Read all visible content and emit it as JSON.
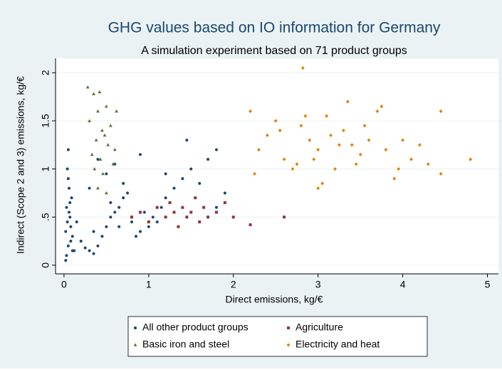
{
  "chart_data": {
    "type": "scatter",
    "title": "GHG values based on IO information for Germany",
    "subtitle": "A simulation experiment based on 71 product groups",
    "x_label": "Direct emissions, kg/€",
    "y_label": "Indirect (Scope 2 and 3) emissions, kg/€",
    "xlim": [
      -0.1,
      5.13
    ],
    "ylim": [
      -0.09,
      2.15
    ],
    "xticks": [
      0,
      1,
      2,
      3,
      4,
      5
    ],
    "yticks": [
      0,
      {
        "value": 0.5,
        "label": ".5"
      },
      1,
      1.5,
      2
    ],
    "grid": true,
    "series": [
      {
        "name": "All other product groups",
        "color": "#1a476f",
        "marker": "circle",
        "x": [
          0.02,
          0.05,
          0.08,
          0.03,
          0.06,
          0.1,
          0.04,
          0.07,
          0.12,
          0.09,
          0.02,
          0.05,
          0.15,
          0.2,
          0.25,
          0.3,
          0.35,
          0.4,
          0.45,
          0.5,
          0.55,
          0.6,
          0.65,
          0.7,
          0.75,
          0.8,
          0.85,
          0.9,
          0.95,
          1.0,
          1.05,
          1.1,
          1.15,
          1.2,
          1.3,
          1.4,
          1.5,
          1.6,
          1.7,
          1.8,
          1.9,
          0.05,
          0.03,
          0.08,
          0.06,
          0.4,
          0.5,
          0.6,
          0.3,
          0.7,
          0.9,
          1.2,
          1.45,
          1.8,
          0.55,
          0.65,
          0.35,
          0.1,
          0.04,
          0.07
        ],
        "values": [
          0.05,
          0.2,
          0.4,
          0.6,
          0.8,
          0.3,
          1.0,
          0.5,
          0.15,
          0.7,
          0.35,
          0.9,
          0.45,
          0.25,
          0.18,
          0.15,
          0.12,
          0.2,
          0.3,
          0.4,
          0.5,
          0.55,
          0.6,
          0.7,
          0.75,
          0.45,
          0.3,
          0.35,
          0.55,
          0.4,
          0.5,
          0.45,
          0.6,
          0.7,
          0.8,
          0.9,
          1.0,
          0.85,
          1.1,
          1.2,
          0.75,
          1.2,
          0.1,
          0.25,
          0.55,
          1.1,
          0.95,
          1.05,
          0.8,
          0.85,
          1.15,
          0.95,
          1.3,
          0.6,
          0.65,
          0.4,
          0.35,
          0.15,
          0.45,
          0.65
        ]
      },
      {
        "name": "Agriculture",
        "color": "#90353b",
        "marker": "square",
        "x": [
          0.8,
          0.9,
          1.0,
          1.1,
          1.2,
          1.25,
          1.3,
          1.35,
          1.4,
          1.45,
          1.5,
          1.55,
          1.6,
          1.65,
          1.7,
          1.8,
          1.9,
          2.0,
          2.2,
          2.6
        ],
        "values": [
          0.5,
          0.55,
          0.45,
          0.6,
          0.5,
          0.65,
          0.55,
          0.4,
          0.6,
          0.5,
          0.55,
          0.7,
          0.45,
          0.6,
          0.5,
          0.55,
          0.65,
          0.5,
          0.42,
          0.5
        ]
      },
      {
        "name": "Basic iron and steel",
        "color": "#55752f",
        "marker": "triangle",
        "x": [
          0.28,
          0.35,
          0.42,
          0.3,
          0.4,
          0.5,
          0.45,
          0.55,
          0.38,
          0.48,
          0.6,
          0.33,
          0.43,
          0.52,
          0.36,
          0.46,
          0.58,
          0.62,
          0.4,
          0.5
        ],
        "values": [
          1.85,
          1.78,
          1.8,
          1.5,
          1.6,
          1.65,
          1.4,
          1.45,
          1.3,
          1.35,
          1.2,
          1.15,
          1.1,
          1.25,
          1.0,
          0.95,
          1.05,
          1.6,
          0.8,
          0.75
        ]
      },
      {
        "name": "Electricity and heat",
        "color": "#e37e00",
        "marker": "diamond",
        "x": [
          2.2,
          2.3,
          2.4,
          2.5,
          2.6,
          2.7,
          2.8,
          2.9,
          3.0,
          3.1,
          3.2,
          3.3,
          3.4,
          3.5,
          3.6,
          3.7,
          3.8,
          3.9,
          4.0,
          4.1,
          4.2,
          4.45,
          4.8,
          2.25,
          2.55,
          2.75,
          2.85,
          2.95,
          3.05,
          3.15,
          3.25,
          3.35,
          3.45,
          3.55,
          3.75,
          3.95,
          4.3,
          4.45,
          2.82,
          3.0
        ],
        "values": [
          1.6,
          1.2,
          1.35,
          1.5,
          1.1,
          1.0,
          1.45,
          1.3,
          1.2,
          1.55,
          1.0,
          1.4,
          1.25,
          1.15,
          1.3,
          1.6,
          1.2,
          0.9,
          1.3,
          1.1,
          1.25,
          1.6,
          1.1,
          0.95,
          1.4,
          1.05,
          1.55,
          1.1,
          0.85,
          1.35,
          1.25,
          1.7,
          1.05,
          1.45,
          1.65,
          1.0,
          1.05,
          0.95,
          2.05,
          0.8
        ]
      }
    ]
  }
}
